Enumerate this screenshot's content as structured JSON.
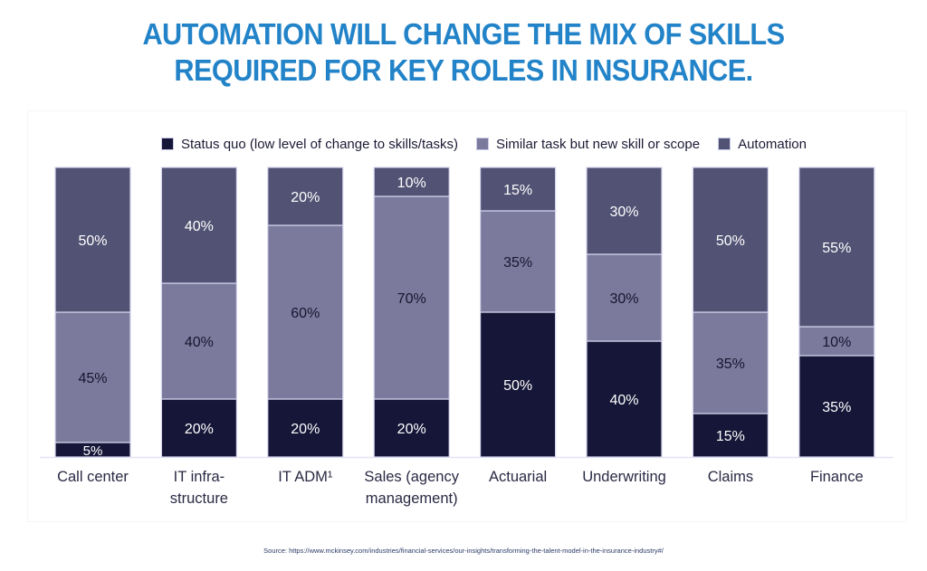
{
  "title_lines": [
    "AUTOMATION WILL CHANGE THE MIX OF SKILLS",
    "REQUIRED FOR KEY ROLES IN INSURANCE."
  ],
  "legend": [
    {
      "label": "Status quo (low level of change to skills/tasks)",
      "color": "#161638"
    },
    {
      "label": "Similar task but new skill or scope",
      "color": "#7b7a9c"
    },
    {
      "label": "Automation",
      "color": "#525274"
    }
  ],
  "source": "Source: https://www.mckinsey.com/industries/financial-services/our-insights/transforming-the-talent-model-in-the-insurance-industry#/",
  "chart_data": {
    "type": "bar",
    "stacked": true,
    "title": "AUTOMATION WILL CHANGE THE MIX OF SKILLS REQUIRED FOR KEY ROLES IN INSURANCE.",
    "xlabel": "",
    "ylabel": "",
    "ylim": [
      0,
      100
    ],
    "grid": false,
    "legend_position": "top",
    "categories": [
      [
        "Call center"
      ],
      [
        "IT infra-",
        "structure"
      ],
      [
        "IT ADM¹"
      ],
      [
        "Sales (agency",
        "management)"
      ],
      [
        "Actuarial"
      ],
      [
        "Underwriting"
      ],
      [
        "Claims"
      ],
      [
        "Finance"
      ]
    ],
    "series": [
      {
        "name": "Status quo (low level of change to skills/tasks)",
        "color": "#161638",
        "label_color": "#ffffff",
        "values": [
          5,
          20,
          20,
          20,
          50,
          40,
          15,
          35
        ]
      },
      {
        "name": "Similar task but new skill or scope",
        "color": "#7b7a9c",
        "label_color": "#161630",
        "values": [
          45,
          40,
          60,
          70,
          35,
          30,
          35,
          10
        ]
      },
      {
        "name": "Automation",
        "color": "#525274",
        "label_color": "#ffffff",
        "values": [
          50,
          40,
          20,
          10,
          15,
          30,
          50,
          55
        ]
      }
    ],
    "value_suffix": "%"
  }
}
